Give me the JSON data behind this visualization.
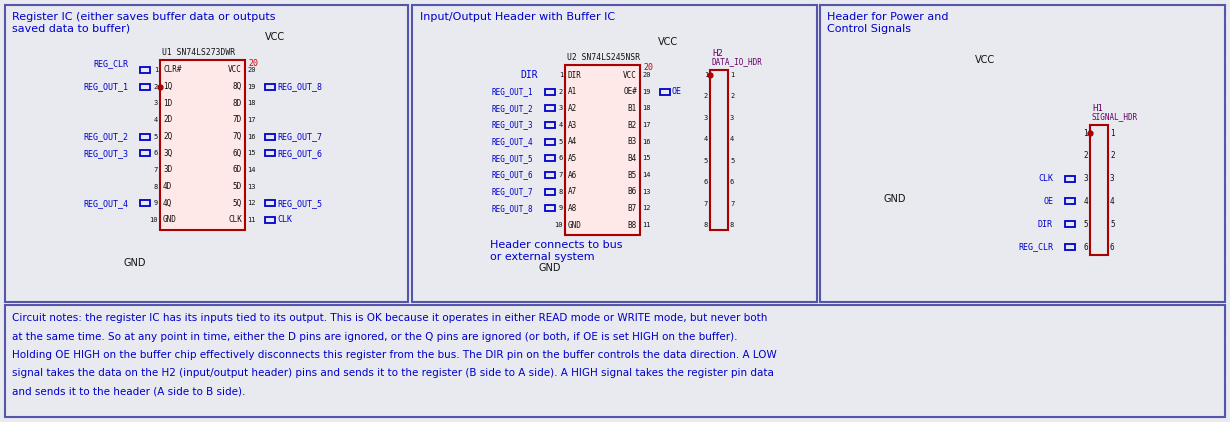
{
  "bg_color": "#e8eaf0",
  "grid_color": "#c0c4d4",
  "border_color": "#5555aa",
  "wire_color": "#007700",
  "chip_border_color": "#aa0000",
  "chip_fill_color": "#ffe8e8",
  "pin_color": "#0000cc",
  "text_blue": "#0000cc",
  "text_red": "#cc0000",
  "text_black": "#111111",
  "text_purple": "#660066",
  "panel1_title": "Register IC (either saves buffer data or outputs\nsaved data to buffer)",
  "panel2_title": "Input/Output Header with Buffer IC",
  "panel3_title": "Header for Power and\nControl Signals",
  "bottom_text_lines": [
    "Circuit notes: the register IC has its inputs tied to its output. This is OK because it operates in either READ mode or WRITE mode, but never both",
    "at the same time. So at any point in time, either the D pins are ignored, or the Q pins are ignored (or both, if OE is set HIGH on the buffer).",
    "Holding OE HIGH on the buffer chip effectively disconnects this register from the bus. The DIR pin on the buffer controls the data direction. A LOW",
    "signal takes the data on the H2 (input/output header) pins and sends it to the register (B side to A side). A HIGH signal takes the register pin data",
    "and sends it to the header (A side to B side)."
  ]
}
